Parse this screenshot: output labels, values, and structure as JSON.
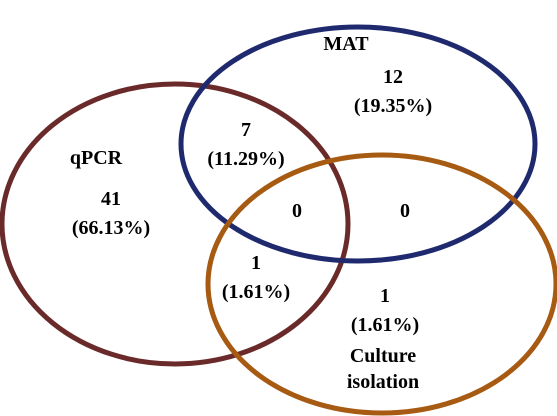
{
  "sets": {
    "mat": {
      "label": "MAT",
      "stroke": "#1f2a6e"
    },
    "qpcr": {
      "label": "qPCR",
      "stroke": "#6b2a2a"
    },
    "culture": {
      "label_line1": "Culture",
      "label_line2": "isolation",
      "stroke": "#a65a12"
    }
  },
  "regions": {
    "qpcr_only": {
      "count": "41",
      "percent": "(66.13%)"
    },
    "mat_only": {
      "count": "12",
      "percent": "(19.35%)"
    },
    "culture_only": {
      "count": "1",
      "percent": "(1.61%)"
    },
    "qpcr_mat": {
      "count": "7",
      "percent": "(11.29%)"
    },
    "qpcr_culture": {
      "count": "1",
      "percent": "(1.61%)"
    },
    "mat_culture": {
      "count": "0"
    },
    "all_three": {
      "count": "0"
    }
  }
}
